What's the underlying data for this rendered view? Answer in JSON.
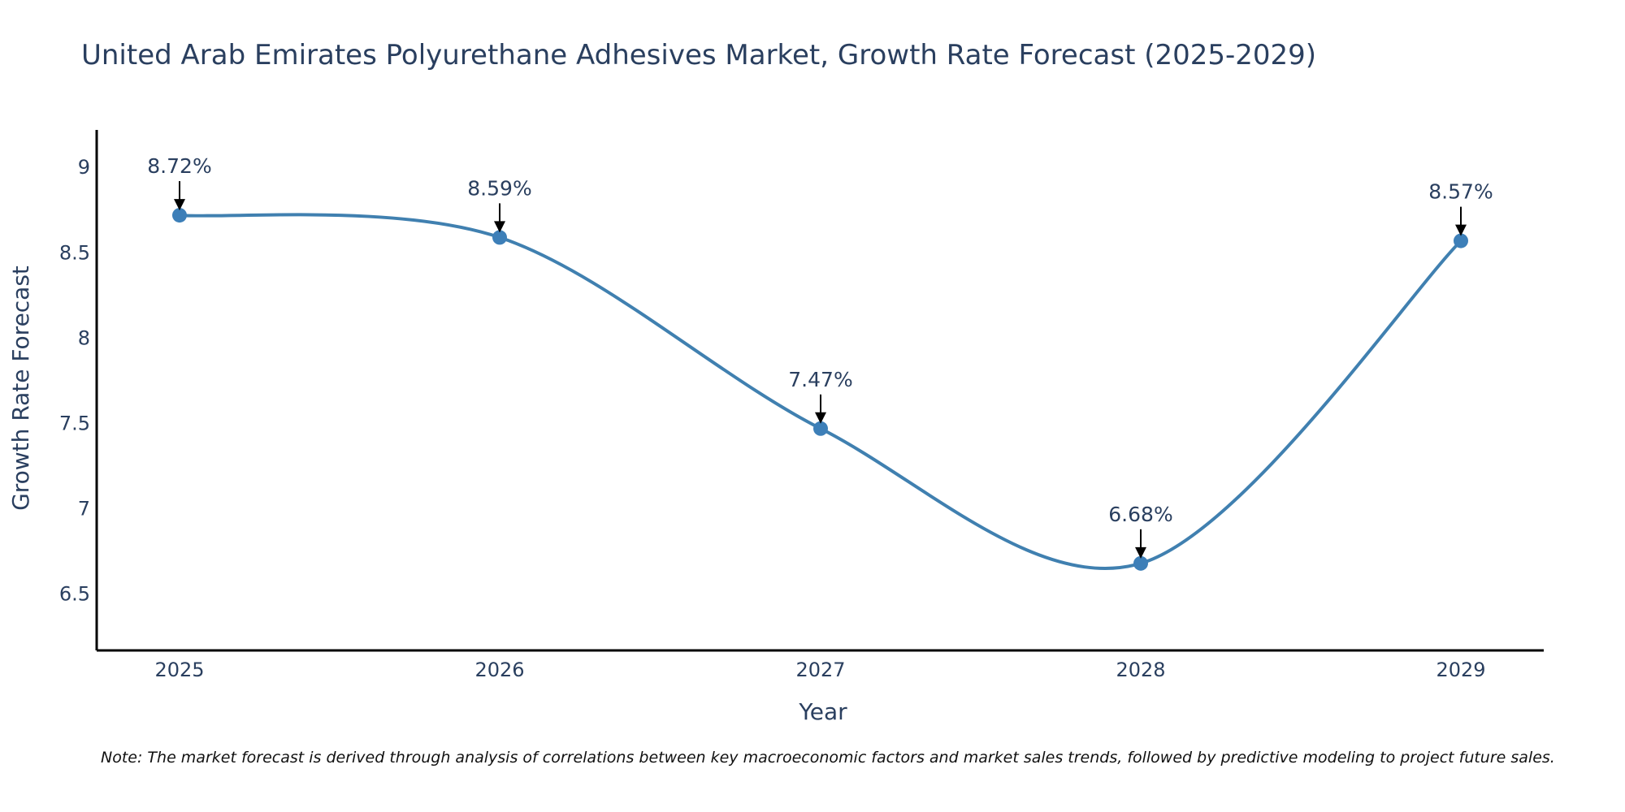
{
  "chart_data": {
    "type": "line",
    "title": "United Arab Emirates Polyurethane Adhesives Market, Growth Rate Forecast (2025-2029)",
    "xlabel": "Year",
    "ylabel": "Growth Rate Forecast",
    "categories": [
      "2025",
      "2026",
      "2027",
      "2028",
      "2029"
    ],
    "values": [
      8.72,
      8.59,
      7.47,
      6.68,
      8.57
    ],
    "data_labels": [
      "8.72%",
      "8.59%",
      "7.47%",
      "6.68%",
      "8.57%"
    ],
    "ylim": [
      6.17,
      9.22
    ],
    "yticks": [
      6.5,
      7,
      7.5,
      8,
      8.5,
      9
    ],
    "ytick_labels": [
      "6.5",
      "7",
      "7.5",
      "8",
      "8.5",
      "9"
    ],
    "line_shape": "spline",
    "grid": false,
    "colors": {
      "line": "#4080b0",
      "marker": "#3d7fb8",
      "axis": "#000000",
      "text": "#2a3f5f",
      "arrow": "#000000"
    },
    "note": "Note: The market forecast is derived through analysis of correlations between key macroeconomic factors and market sales trends, followed by predictive modeling to project future sales."
  }
}
